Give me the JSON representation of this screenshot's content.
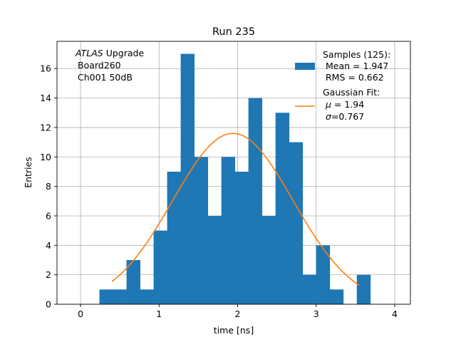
{
  "chart_data": {
    "type": "bar",
    "title": "Run 235",
    "xlabel": "time [ns]",
    "ylabel": "Entries",
    "xlim": [
      -0.3,
      4.2
    ],
    "ylim": [
      0,
      17.85
    ],
    "xticks": [
      0,
      1,
      2,
      3,
      4
    ],
    "yticks": [
      0,
      2,
      4,
      6,
      8,
      10,
      12,
      14,
      16
    ],
    "grid": true,
    "bin_width": 0.1725,
    "bins": [
      {
        "x0": 0.24,
        "count": 1
      },
      {
        "x0": 0.4125,
        "count": 1
      },
      {
        "x0": 0.585,
        "count": 3
      },
      {
        "x0": 0.7575,
        "count": 1
      },
      {
        "x0": 0.93,
        "count": 5
      },
      {
        "x0": 1.1025,
        "count": 9
      },
      {
        "x0": 1.275,
        "count": 17
      },
      {
        "x0": 1.4475,
        "count": 10
      },
      {
        "x0": 1.62,
        "count": 6
      },
      {
        "x0": 1.7925,
        "count": 10
      },
      {
        "x0": 1.965,
        "count": 9
      },
      {
        "x0": 2.1375,
        "count": 14
      },
      {
        "x0": 2.31,
        "count": 6
      },
      {
        "x0": 2.4825,
        "count": 13
      },
      {
        "x0": 2.655,
        "count": 11
      },
      {
        "x0": 2.8275,
        "count": 2
      },
      {
        "x0": 3.0,
        "count": 4
      },
      {
        "x0": 3.1725,
        "count": 1
      },
      {
        "x0": 3.345,
        "count": 0
      },
      {
        "x0": 3.5175,
        "count": 2
      }
    ],
    "fit": {
      "mu": 1.94,
      "sigma": 0.767,
      "amplitude": 11.6,
      "x_range": [
        0.4,
        3.55
      ]
    },
    "series": [
      {
        "name": "Samples (125):",
        "color": "#1f77b4"
      },
      {
        "name": "Gaussian Fit:",
        "color": "#ff7f0e"
      }
    ],
    "legend": {
      "position": "top-right",
      "samples_title": "Samples (125):",
      "mean_line": "Mean = 1.947",
      "rms_line": "RMS = 0.662",
      "fit_title": "Gaussian Fit:",
      "mu_symbol": "μ",
      "mu_value": " = 1.94",
      "sigma_symbol": "σ",
      "sigma_value": "=0.767"
    },
    "annotation": {
      "italic": "ATLAS",
      "upgrade": " Upgrade",
      "line2": "Board260",
      "line3": "Ch001 50dB"
    }
  }
}
